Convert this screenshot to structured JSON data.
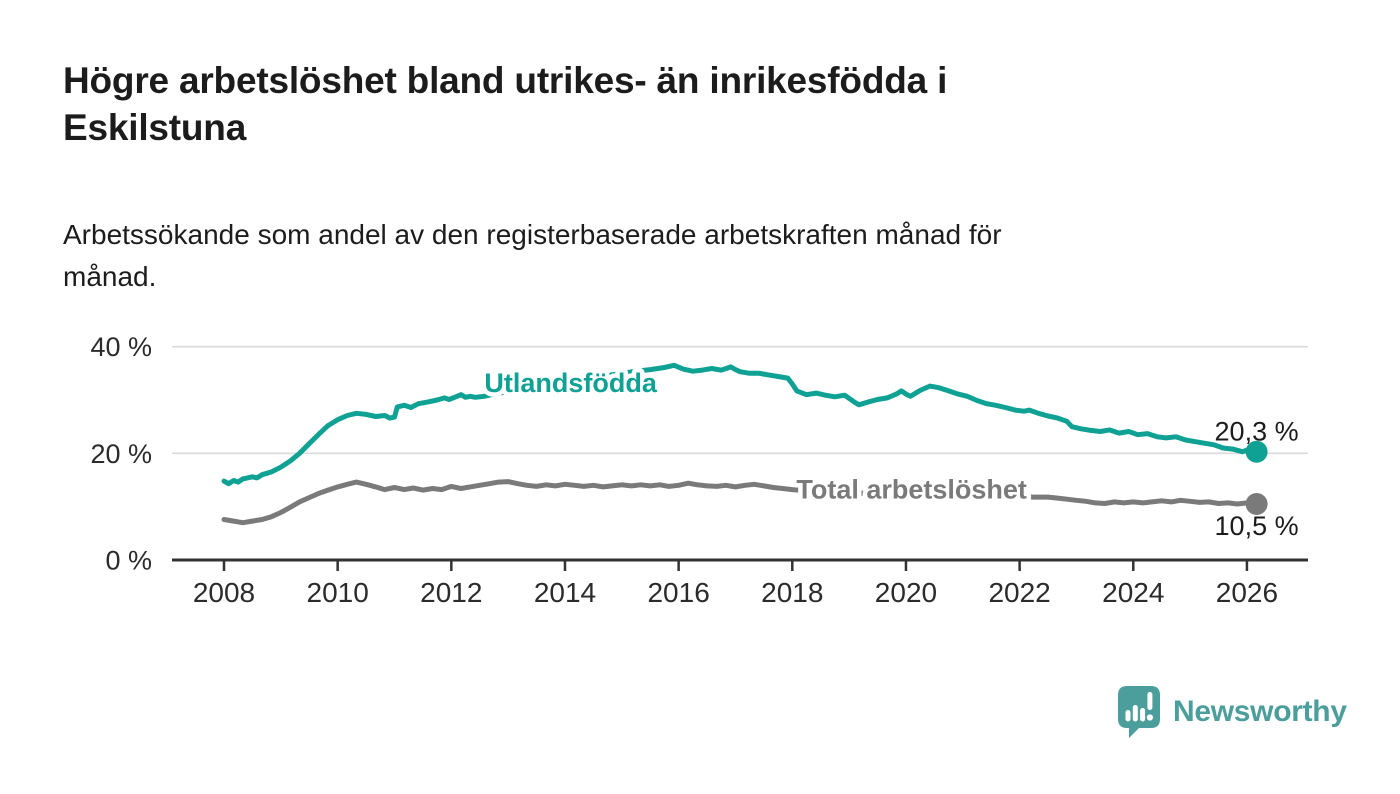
{
  "header": {
    "title_line1": "Högre arbetslöshet bland utrikes- än inrikesfödda i",
    "title_line2": "Eskilstuna",
    "subtitle_line1": "Arbetssökande som andel av den registerbaserade arbetskraften månad för",
    "subtitle_line2": "månad."
  },
  "footer": {
    "brand": "Newsworthy",
    "logo_icon": "speech-bubble-bar-chart-icon"
  },
  "colors": {
    "background": "#FFFFFF",
    "teal": "#0FA294",
    "gray": "#7A7A7A",
    "text_dark": "#1C1C1C",
    "axis_text": "#2B2B2B",
    "gridline": "#DBDBDB",
    "axis_line": "#333333",
    "logo_teal": "#4B9E9B"
  },
  "chart_data": {
    "type": "line",
    "title": "Högre arbetslöshet bland utrikes- än inrikesfödda i Eskilstuna",
    "subtitle": "Arbetssökande som andel av den registerbaserade arbetskraften månad för månad.",
    "xlabel": "",
    "ylabel": "",
    "unit": "%",
    "grid": "horizontal-only",
    "x_axis": {
      "range": [
        2007.1,
        2027.1
      ],
      "ticks": [
        2008,
        2010,
        2012,
        2014,
        2016,
        2018,
        2020,
        2022,
        2024,
        2026
      ]
    },
    "y_axis": {
      "range": [
        0,
        42
      ],
      "ticks": [
        {
          "value": 0,
          "label": "0 %"
        },
        {
          "value": 20,
          "label": "20 %"
        },
        {
          "value": 40,
          "label": "40 %"
        }
      ]
    },
    "legend_position": "inline-on-line",
    "series": [
      {
        "name": "Utlandsfödda",
        "color_key": "teal",
        "end_value": 20.3,
        "end_label": "20,3 %",
        "end_label_side": "above",
        "label_pos": {
          "year": 2014.1,
          "pct": 33.3
        },
        "points": [
          [
            2008.0,
            14.8
          ],
          [
            2008.08,
            14.3
          ],
          [
            2008.17,
            14.9
          ],
          [
            2008.25,
            14.6
          ],
          [
            2008.33,
            15.2
          ],
          [
            2008.5,
            15.6
          ],
          [
            2008.58,
            15.4
          ],
          [
            2008.67,
            16.0
          ],
          [
            2008.83,
            16.5
          ],
          [
            2009.0,
            17.4
          ],
          [
            2009.17,
            18.6
          ],
          [
            2009.33,
            20.0
          ],
          [
            2009.5,
            21.8
          ],
          [
            2009.67,
            23.6
          ],
          [
            2009.83,
            25.2
          ],
          [
            2010.0,
            26.3
          ],
          [
            2010.17,
            27.1
          ],
          [
            2010.33,
            27.5
          ],
          [
            2010.5,
            27.3
          ],
          [
            2010.67,
            26.9
          ],
          [
            2010.83,
            27.1
          ],
          [
            2010.92,
            26.6
          ],
          [
            2011.0,
            26.8
          ],
          [
            2011.05,
            28.7
          ],
          [
            2011.17,
            29.0
          ],
          [
            2011.29,
            28.6
          ],
          [
            2011.42,
            29.3
          ],
          [
            2011.58,
            29.6
          ],
          [
            2011.75,
            30.0
          ],
          [
            2011.88,
            30.4
          ],
          [
            2011.96,
            30.1
          ],
          [
            2012.08,
            30.6
          ],
          [
            2012.17,
            31.0
          ],
          [
            2012.25,
            30.5
          ],
          [
            2012.33,
            30.7
          ],
          [
            2012.42,
            30.5
          ],
          [
            2012.58,
            30.7
          ],
          [
            2012.75,
            31.1
          ],
          [
            2013.0,
            31.6
          ],
          [
            2013.25,
            32.1
          ],
          [
            2013.5,
            32.5
          ],
          [
            2013.75,
            32.9
          ],
          [
            2014.0,
            33.3
          ],
          [
            2014.25,
            33.8
          ],
          [
            2014.5,
            34.2
          ],
          [
            2014.75,
            34.6
          ],
          [
            2015.0,
            35.0
          ],
          [
            2015.25,
            35.4
          ],
          [
            2015.5,
            35.7
          ],
          [
            2015.75,
            36.1
          ],
          [
            2015.92,
            36.5
          ],
          [
            2016.08,
            35.8
          ],
          [
            2016.25,
            35.4
          ],
          [
            2016.42,
            35.6
          ],
          [
            2016.58,
            35.9
          ],
          [
            2016.75,
            35.6
          ],
          [
            2016.92,
            36.2
          ],
          [
            2017.0,
            35.7
          ],
          [
            2017.08,
            35.3
          ],
          [
            2017.25,
            35.0
          ],
          [
            2017.42,
            35.0
          ],
          [
            2017.58,
            34.7
          ],
          [
            2017.75,
            34.4
          ],
          [
            2017.92,
            34.1
          ],
          [
            2018.0,
            33.0
          ],
          [
            2018.08,
            31.7
          ],
          [
            2018.25,
            31.0
          ],
          [
            2018.42,
            31.3
          ],
          [
            2018.58,
            30.9
          ],
          [
            2018.75,
            30.6
          ],
          [
            2018.92,
            30.9
          ],
          [
            2019.08,
            29.7
          ],
          [
            2019.17,
            29.1
          ],
          [
            2019.33,
            29.6
          ],
          [
            2019.5,
            30.1
          ],
          [
            2019.67,
            30.4
          ],
          [
            2019.83,
            31.1
          ],
          [
            2019.92,
            31.7
          ],
          [
            2020.0,
            31.1
          ],
          [
            2020.08,
            30.7
          ],
          [
            2020.25,
            31.8
          ],
          [
            2020.42,
            32.6
          ],
          [
            2020.58,
            32.3
          ],
          [
            2020.75,
            31.7
          ],
          [
            2020.92,
            31.1
          ],
          [
            2021.08,
            30.7
          ],
          [
            2021.25,
            29.9
          ],
          [
            2021.42,
            29.3
          ],
          [
            2021.58,
            29.0
          ],
          [
            2021.75,
            28.6
          ],
          [
            2021.92,
            28.1
          ],
          [
            2022.08,
            27.9
          ],
          [
            2022.17,
            28.1
          ],
          [
            2022.33,
            27.5
          ],
          [
            2022.5,
            27.0
          ],
          [
            2022.67,
            26.6
          ],
          [
            2022.83,
            26.0
          ],
          [
            2022.92,
            25.0
          ],
          [
            2023.08,
            24.6
          ],
          [
            2023.25,
            24.3
          ],
          [
            2023.42,
            24.1
          ],
          [
            2023.58,
            24.4
          ],
          [
            2023.75,
            23.8
          ],
          [
            2023.92,
            24.1
          ],
          [
            2024.08,
            23.5
          ],
          [
            2024.25,
            23.7
          ],
          [
            2024.42,
            23.1
          ],
          [
            2024.58,
            22.9
          ],
          [
            2024.75,
            23.1
          ],
          [
            2024.92,
            22.5
          ],
          [
            2025.08,
            22.2
          ],
          [
            2025.25,
            21.9
          ],
          [
            2025.42,
            21.6
          ],
          [
            2025.58,
            21.0
          ],
          [
            2025.75,
            20.8
          ],
          [
            2025.92,
            20.3
          ],
          [
            2026.0,
            20.6
          ],
          [
            2026.17,
            20.3
          ]
        ]
      },
      {
        "name": "Total arbetslöshet",
        "color_key": "gray",
        "end_value": 10.5,
        "end_label": "10,5 %",
        "end_label_side": "below",
        "label_pos": {
          "year": 2020.1,
          "pct": 13.3
        },
        "points": [
          [
            2008.0,
            7.6
          ],
          [
            2008.17,
            7.3
          ],
          [
            2008.33,
            7.0
          ],
          [
            2008.5,
            7.3
          ],
          [
            2008.67,
            7.6
          ],
          [
            2008.83,
            8.1
          ],
          [
            2009.0,
            8.9
          ],
          [
            2009.17,
            9.9
          ],
          [
            2009.33,
            10.9
          ],
          [
            2009.5,
            11.7
          ],
          [
            2009.67,
            12.5
          ],
          [
            2009.83,
            13.1
          ],
          [
            2010.0,
            13.7
          ],
          [
            2010.17,
            14.2
          ],
          [
            2010.33,
            14.6
          ],
          [
            2010.5,
            14.2
          ],
          [
            2010.67,
            13.7
          ],
          [
            2010.83,
            13.2
          ],
          [
            2011.0,
            13.6
          ],
          [
            2011.17,
            13.2
          ],
          [
            2011.33,
            13.5
          ],
          [
            2011.5,
            13.1
          ],
          [
            2011.67,
            13.4
          ],
          [
            2011.83,
            13.2
          ],
          [
            2012.0,
            13.8
          ],
          [
            2012.17,
            13.4
          ],
          [
            2012.33,
            13.7
          ],
          [
            2012.5,
            14.0
          ],
          [
            2012.67,
            14.3
          ],
          [
            2012.83,
            14.6
          ],
          [
            2013.0,
            14.7
          ],
          [
            2013.17,
            14.3
          ],
          [
            2013.33,
            14.0
          ],
          [
            2013.5,
            13.8
          ],
          [
            2013.67,
            14.1
          ],
          [
            2013.83,
            13.9
          ],
          [
            2014.0,
            14.2
          ],
          [
            2014.17,
            14.0
          ],
          [
            2014.33,
            13.8
          ],
          [
            2014.5,
            14.0
          ],
          [
            2014.67,
            13.7
          ],
          [
            2014.83,
            13.9
          ],
          [
            2015.0,
            14.1
          ],
          [
            2015.17,
            13.9
          ],
          [
            2015.33,
            14.1
          ],
          [
            2015.5,
            13.9
          ],
          [
            2015.67,
            14.1
          ],
          [
            2015.83,
            13.8
          ],
          [
            2016.0,
            14.0
          ],
          [
            2016.17,
            14.4
          ],
          [
            2016.33,
            14.1
          ],
          [
            2016.5,
            13.9
          ],
          [
            2016.67,
            13.8
          ],
          [
            2016.83,
            14.0
          ],
          [
            2017.0,
            13.7
          ],
          [
            2017.17,
            14.0
          ],
          [
            2017.33,
            14.2
          ],
          [
            2017.5,
            13.9
          ],
          [
            2017.67,
            13.6
          ],
          [
            2017.83,
            13.4
          ],
          [
            2018.0,
            13.2
          ],
          [
            2018.25,
            13.0
          ],
          [
            2018.5,
            12.9
          ],
          [
            2018.75,
            12.7
          ],
          [
            2019.0,
            12.6
          ],
          [
            2019.25,
            12.5
          ],
          [
            2019.5,
            12.4
          ],
          [
            2019.75,
            12.5
          ],
          [
            2020.0,
            12.7
          ],
          [
            2020.25,
            12.9
          ],
          [
            2020.5,
            13.1
          ],
          [
            2020.75,
            12.9
          ],
          [
            2021.0,
            12.7
          ],
          [
            2021.25,
            12.5
          ],
          [
            2021.5,
            12.3
          ],
          [
            2021.75,
            12.1
          ],
          [
            2022.0,
            11.9
          ],
          [
            2022.25,
            11.8
          ],
          [
            2022.5,
            11.8
          ],
          [
            2022.67,
            11.6
          ],
          [
            2022.83,
            11.4
          ],
          [
            2023.0,
            11.2
          ],
          [
            2023.17,
            11.0
          ],
          [
            2023.33,
            10.7
          ],
          [
            2023.5,
            10.6
          ],
          [
            2023.67,
            10.9
          ],
          [
            2023.83,
            10.7
          ],
          [
            2024.0,
            10.9
          ],
          [
            2024.17,
            10.7
          ],
          [
            2024.33,
            10.9
          ],
          [
            2024.5,
            11.1
          ],
          [
            2024.67,
            10.9
          ],
          [
            2024.83,
            11.2
          ],
          [
            2025.0,
            11.0
          ],
          [
            2025.17,
            10.8
          ],
          [
            2025.33,
            10.9
          ],
          [
            2025.5,
            10.6
          ],
          [
            2025.67,
            10.7
          ],
          [
            2025.83,
            10.5
          ],
          [
            2026.0,
            10.7
          ],
          [
            2026.17,
            10.5
          ]
        ]
      }
    ]
  }
}
